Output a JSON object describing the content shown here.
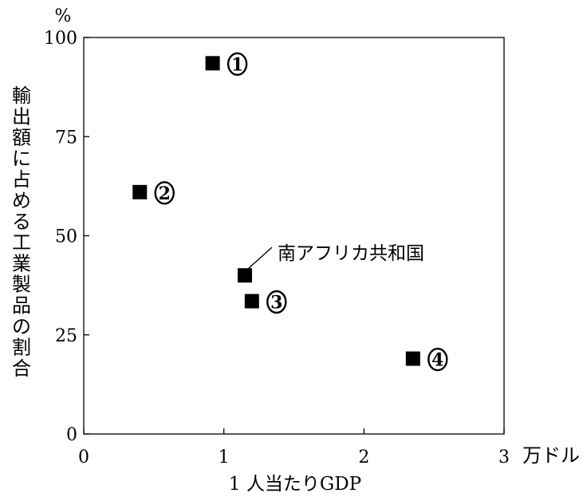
{
  "chart_data": {
    "type": "scatter",
    "title": "",
    "xlabel": "1 人当たりGDP",
    "x_unit": "万ドル",
    "ylabel": "輸出額に占める工業製品の割合",
    "y_unit": "%",
    "xlim": [
      0,
      3
    ],
    "ylim": [
      0,
      100
    ],
    "x_ticks": [
      0,
      1,
      2,
      3
    ],
    "y_ticks": [
      0,
      25,
      50,
      75,
      100
    ],
    "grid": false,
    "points": [
      {
        "x": 0.92,
        "y": 93.5,
        "label": "①"
      },
      {
        "x": 0.4,
        "y": 61.0,
        "label": "②"
      },
      {
        "x": 1.2,
        "y": 33.5,
        "label": "③"
      },
      {
        "x": 2.35,
        "y": 19.0,
        "label": "④"
      },
      {
        "x": 1.15,
        "y": 40.0,
        "label": "南アフリカ共和国"
      }
    ]
  }
}
